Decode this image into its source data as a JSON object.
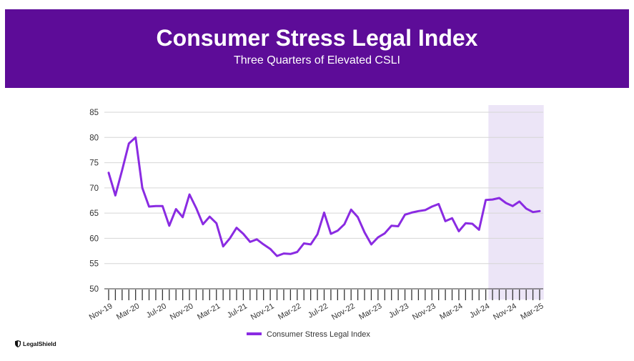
{
  "header": {
    "title": "Consumer Stress Legal Index",
    "subtitle": "Three Quarters of Elevated CSLI"
  },
  "brand": {
    "logo_text": "LegalShield",
    "accent": "#8a2be2",
    "banner": "#5d0c98"
  },
  "chart_data": {
    "type": "line",
    "title": "Consumer Stress Legal Index",
    "subtitle": "Three Quarters of Elevated CSLI",
    "ylim": [
      50,
      85
    ],
    "yticks": [
      50,
      55,
      60,
      65,
      70,
      75,
      80,
      85
    ],
    "grid": true,
    "legend_position": "bottom-center",
    "highlight_region": {
      "from": "Aug-24",
      "to": "Mar-25",
      "label": "Three Quarters of Elevated CSLI"
    },
    "x": [
      "Nov-19",
      "Dec-19",
      "Jan-20",
      "Feb-20",
      "Mar-20",
      "Apr-20",
      "May-20",
      "Jun-20",
      "Jul-20",
      "Aug-20",
      "Sep-20",
      "Oct-20",
      "Nov-20",
      "Dec-20",
      "Jan-21",
      "Feb-21",
      "Mar-21",
      "Apr-21",
      "May-21",
      "Jun-21",
      "Jul-21",
      "Aug-21",
      "Sep-21",
      "Oct-21",
      "Nov-21",
      "Dec-21",
      "Jan-22",
      "Feb-22",
      "Mar-22",
      "Apr-22",
      "May-22",
      "Jun-22",
      "Jul-22",
      "Aug-22",
      "Sep-22",
      "Oct-22",
      "Nov-22",
      "Dec-22",
      "Jan-23",
      "Feb-23",
      "Mar-23",
      "Apr-23",
      "May-23",
      "Jun-23",
      "Jul-23",
      "Aug-23",
      "Sep-23",
      "Oct-23",
      "Nov-23",
      "Dec-23",
      "Jan-24",
      "Feb-24",
      "Mar-24",
      "Apr-24",
      "May-24",
      "Jun-24",
      "Jul-24",
      "Aug-24",
      "Sep-24",
      "Oct-24",
      "Nov-24",
      "Dec-24",
      "Jan-25",
      "Feb-25",
      "Mar-25"
    ],
    "x_tick_labels": [
      "Nov-19",
      "Mar-20",
      "Jul-20",
      "Nov-20",
      "Mar-21",
      "Jul-21",
      "Nov-21",
      "Mar-22",
      "Jul-22",
      "Nov-22",
      "Mar-23",
      "Jul-23",
      "Nov-23",
      "Mar-24",
      "Jul-24",
      "Nov-24",
      "Mar-25"
    ],
    "series": [
      {
        "name": "Consumer Stress Legal Index",
        "color": "#8a2be2",
        "values": [
          73.0,
          68.5,
          73.5,
          78.8,
          80.0,
          70.0,
          66.3,
          66.4,
          66.4,
          62.5,
          65.8,
          64.2,
          68.7,
          66.0,
          62.8,
          64.3,
          63.0,
          58.4,
          60.0,
          62.1,
          60.9,
          59.3,
          59.8,
          58.8,
          57.9,
          56.5,
          57.0,
          56.9,
          57.3,
          59.0,
          58.8,
          60.8,
          65.1,
          60.9,
          61.5,
          62.8,
          65.7,
          64.2,
          61.2,
          58.8,
          60.2,
          61.0,
          62.5,
          62.4,
          64.7,
          65.1,
          65.4,
          65.6,
          66.3,
          66.8,
          63.4,
          64.0,
          61.4,
          63.0,
          62.9,
          61.7,
          67.6,
          67.7,
          68.0,
          67.0,
          66.4,
          67.3,
          65.9,
          65.2,
          65.4
        ]
      }
    ]
  }
}
